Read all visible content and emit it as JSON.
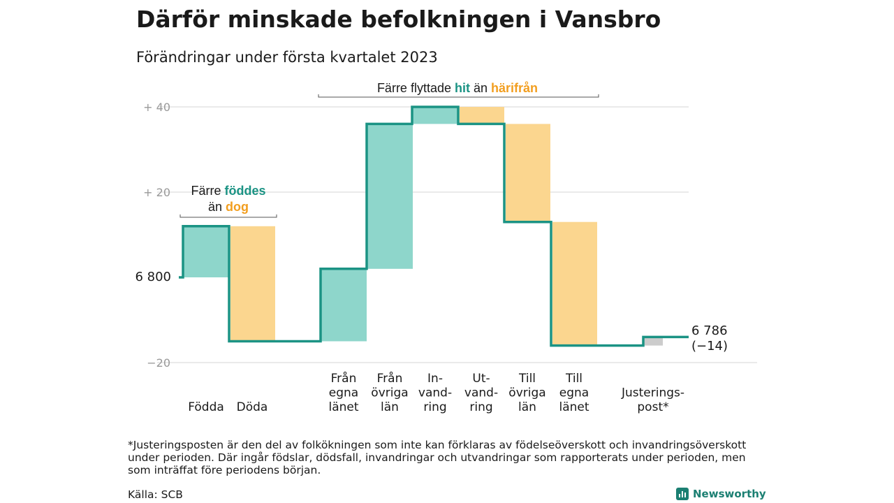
{
  "title": "Därför minskade befolkningen i Vansbro",
  "subtitle": "Förändringar under första kvartalet 2023",
  "colors": {
    "in": "#8ed6cb",
    "out": "#fbd68f",
    "line": "#1b9384",
    "adjust": "#cccccc",
    "teal_text": "#1b9384",
    "orange_text": "#f29e1f"
  },
  "chart_data": {
    "type": "waterfall",
    "start_value": 6800,
    "start_label": "6 800",
    "end_value": 6786,
    "end_label": "6 786",
    "end_change_label": "(−14)",
    "y_ticks": [
      {
        "value": 40,
        "label": "+ 40"
      },
      {
        "value": 20,
        "label": "+ 20"
      },
      {
        "value": -20,
        "label": "−20"
      }
    ],
    "ylim": [
      -20,
      40
    ],
    "steps": [
      {
        "label_lines": [
          "Födda"
        ],
        "change": 12,
        "kind": "in"
      },
      {
        "label_lines": [
          "Döda"
        ],
        "change": -27,
        "kind": "out"
      },
      {
        "label_lines": [
          "Från",
          "egna",
          "länet"
        ],
        "change": 17,
        "kind": "in"
      },
      {
        "label_lines": [
          "Från",
          "övriga",
          "län"
        ],
        "change": 34,
        "kind": "in"
      },
      {
        "label_lines": [
          "In-",
          "vand-",
          "ring"
        ],
        "change": 4,
        "kind": "in"
      },
      {
        "label_lines": [
          "Ut-",
          "vand-",
          "ring"
        ],
        "change": -4,
        "kind": "out"
      },
      {
        "label_lines": [
          "Till",
          "övriga",
          "län"
        ],
        "change": -23,
        "kind": "out"
      },
      {
        "label_lines": [
          "Till",
          "egna",
          "länet"
        ],
        "change": -29,
        "kind": "out"
      },
      {
        "label_lines": [
          "Justerings-",
          "post*"
        ],
        "change": 2,
        "kind": "adjust"
      }
    ],
    "annotations": [
      {
        "lines": [
          [
            {
              "text": "Färre ",
              "style": "plain"
            },
            {
              "text": "föddes",
              "style": "teal"
            }
          ],
          [
            {
              "text": "än ",
              "style": "plain"
            },
            {
              "text": "dog",
              "style": "orange"
            }
          ]
        ]
      },
      {
        "lines": [
          [
            {
              "text": "Färre flyttade ",
              "style": "plain"
            },
            {
              "text": "hit",
              "style": "teal"
            },
            {
              "text": " än ",
              "style": "plain"
            },
            {
              "text": "härifrån",
              "style": "orange"
            }
          ]
        ]
      }
    ]
  },
  "footnote": "*Justeringsposten är den del av folkökningen som inte kan förklaras av födelseöverskott och invandringsöverskott under perioden. Där ingår födslar, dödsfall, invandringar och utvandringar som rapporterats under perioden, men som inträffat före periodens början.",
  "source": "Källa: SCB",
  "brand": "Newsworthy"
}
